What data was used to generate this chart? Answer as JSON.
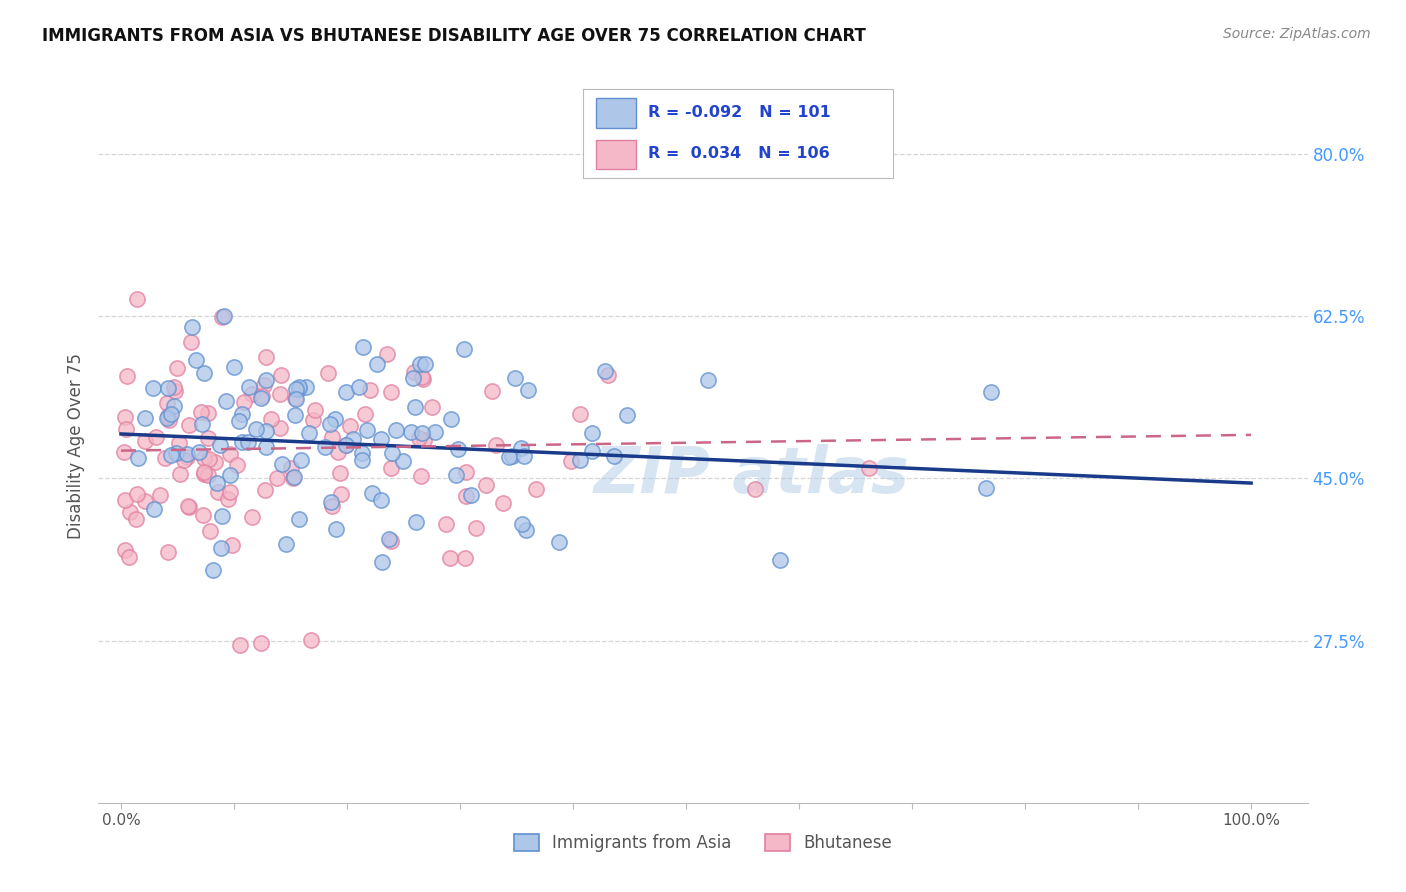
{
  "title": "IMMIGRANTS FROM ASIA VS BHUTANESE DISABILITY AGE OVER 75 CORRELATION CHART",
  "source": "Source: ZipAtlas.com",
  "ylabel": "Disability Age Over 75",
  "x_ticks": [
    0.0,
    0.1,
    0.2,
    0.3,
    0.4,
    0.5,
    0.6,
    0.7,
    0.8,
    0.9,
    1.0
  ],
  "x_tick_labels": [
    "0.0%",
    "",
    "",
    "",
    "",
    "",
    "",
    "",
    "",
    "",
    "100.0%"
  ],
  "y_tick_labels": [
    "27.5%",
    "45.0%",
    "62.5%",
    "80.0%"
  ],
  "y_ticks": [
    0.275,
    0.45,
    0.625,
    0.8
  ],
  "xlim": [
    -0.02,
    1.05
  ],
  "ylim": [
    0.1,
    0.87
  ],
  "blue_fill": "#aec6e8",
  "blue_edge": "#6090d0",
  "pink_fill": "#f4b8c8",
  "pink_edge": "#e080a0",
  "blue_line_color": "#1a3a8a",
  "pink_line_color": "#cc6688",
  "grid_color": "#cccccc",
  "title_color": "#111111",
  "source_color": "#888888",
  "ylabel_color": "#555555",
  "tick_color_x": "#555555",
  "tick_color_y": "#4499ff",
  "legend_text_color": "#2244cc",
  "legend_blue_fill": "#aec6e8",
  "legend_blue_edge": "#6090d0",
  "legend_pink_fill": "#f4b8c8",
  "legend_pink_edge": "#e080a0",
  "watermark_color": "#b0cce8",
  "watermark_alpha": 0.5,
  "blue_line_start_x": 0.0,
  "blue_line_start_y": 0.498,
  "blue_line_end_x": 1.0,
  "blue_line_end_y": 0.445,
  "pink_line_start_x": 0.0,
  "pink_line_start_y": 0.48,
  "pink_line_end_x": 1.0,
  "pink_line_end_y": 0.497,
  "N_blue": 101,
  "N_pink": 106,
  "seed_blue": 42,
  "seed_pink": 7,
  "dot_size": 120,
  "dot_alpha": 0.75
}
